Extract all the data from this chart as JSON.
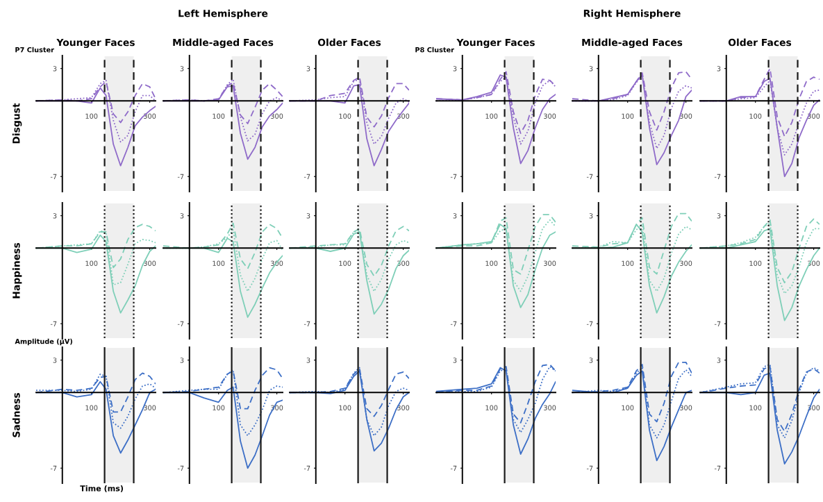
{
  "chart_data": [
    {
      "type": "line",
      "title": "Younger Faces",
      "ylabel": "Disgust",
      "annotations": [
        "P7 Cluster"
      ],
      "x": [
        -90,
        0,
        50,
        100,
        130,
        150,
        175,
        200,
        225,
        250,
        275,
        300,
        320
      ],
      "xlim": [
        -90,
        320
      ],
      "ylim": [
        -8.4,
        4.2
      ],
      "xticks": [
        100,
        300
      ],
      "yticks": [
        3,
        -7
      ],
      "bands": [
        {
          "axis": "x",
          "from": 145,
          "to": 245,
          "color": "#1a1a1a"
        }
      ],
      "ref_lines": [
        {
          "axis": "x",
          "value": 145,
          "color": "#1a1a1a",
          "line_style": "dashed"
        },
        {
          "axis": "x",
          "value": 245,
          "color": "#1a1a1a",
          "line_style": "dashed"
        }
      ],
      "series": [
        {
          "color": "#8f6bc9",
          "line_style": "solid",
          "values": [
            0,
            0,
            0,
            -0.2,
            1.2,
            0.5,
            -4.0,
            -6.0,
            -4.3,
            -2.3,
            -1.5,
            -0.9,
            -0.5
          ]
        },
        {
          "color": "#8f6bc9",
          "line_style": "dotted",
          "values": [
            0,
            0.1,
            0.2,
            0.3,
            1.6,
            1.9,
            -1.8,
            -3.8,
            -3.2,
            -1.0,
            0.5,
            0.5,
            0
          ]
        },
        {
          "color": "#8f6bc9",
          "line_style": "dashed",
          "values": [
            0,
            0.1,
            0,
            0.2,
            1.3,
            1.8,
            -1.2,
            -2.0,
            -1.0,
            0.5,
            1.6,
            1.3,
            0.2
          ]
        }
      ]
    },
    {
      "type": "line",
      "title": "Middle-aged Faces",
      "subtitle": "Left Hemisphere",
      "x": [
        -90,
        0,
        50,
        100,
        130,
        150,
        175,
        200,
        225,
        250,
        275,
        300,
        320
      ],
      "xlim": [
        -90,
        320
      ],
      "ylim": [
        -8.4,
        4.2
      ],
      "xticks": [
        100,
        300
      ],
      "yticks": [
        3,
        -7
      ],
      "bands": [
        {
          "axis": "x",
          "from": 145,
          "to": 245,
          "color": "#1a1a1a"
        }
      ],
      "ref_lines": [
        {
          "axis": "x",
          "value": 145,
          "color": "#1a1a1a",
          "line_style": "dashed"
        },
        {
          "axis": "x",
          "value": 245,
          "color": "#1a1a1a",
          "line_style": "dashed"
        }
      ],
      "series": [
        {
          "color": "#8f6bc9",
          "line_style": "solid",
          "values": [
            0,
            0,
            0,
            0.1,
            1.3,
            1.4,
            -3.0,
            -5.4,
            -4.3,
            -2.4,
            -1.4,
            -0.8,
            -0.2
          ]
        },
        {
          "color": "#8f6bc9",
          "line_style": "dotted",
          "values": [
            0,
            0.1,
            0,
            0.1,
            1.5,
            2.0,
            -1.5,
            -3.7,
            -3.1,
            -1.2,
            0,
            0.3,
            0
          ]
        },
        {
          "color": "#8f6bc9",
          "line_style": "dashed",
          "values": [
            0,
            0.1,
            0,
            0.2,
            1.4,
            1.7,
            -1.3,
            -2.1,
            -0.6,
            1.0,
            1.6,
            1.0,
            0.4
          ]
        }
      ]
    },
    {
      "type": "line",
      "title": "Older Faces",
      "x": [
        -90,
        0,
        50,
        100,
        130,
        150,
        175,
        200,
        225,
        250,
        275,
        300,
        320
      ],
      "xlim": [
        -90,
        320
      ],
      "ylim": [
        -8.4,
        4.2
      ],
      "xticks": [
        100,
        300
      ],
      "yticks": [
        3,
        -7
      ],
      "bands": [
        {
          "axis": "x",
          "from": 145,
          "to": 245,
          "color": "#1a1a1a"
        }
      ],
      "ref_lines": [
        {
          "axis": "x",
          "value": 145,
          "color": "#1a1a1a",
          "line_style": "dashed"
        },
        {
          "axis": "x",
          "value": 245,
          "color": "#1a1a1a",
          "line_style": "dashed"
        }
      ],
      "series": [
        {
          "color": "#8f6bc9",
          "line_style": "solid",
          "values": [
            0,
            0,
            0,
            -0.2,
            1.4,
            1.5,
            -3.5,
            -6.0,
            -4.5,
            -2.8,
            -1.8,
            -0.9,
            -0.2
          ]
        },
        {
          "color": "#8f6bc9",
          "line_style": "dotted",
          "values": [
            0,
            0.1,
            0.3,
            0.4,
            1.8,
            2.0,
            -2.0,
            -4.0,
            -3.3,
            -1.6,
            -0.2,
            0.2,
            -0.1
          ]
        },
        {
          "color": "#8f6bc9",
          "line_style": "dashed",
          "values": [
            0,
            0,
            0.5,
            0.7,
            1.9,
            2.2,
            -1.5,
            -2.4,
            -1.4,
            0.3,
            1.6,
            1.6,
            1.0
          ]
        }
      ]
    },
    {
      "type": "line",
      "title": "Younger Faces",
      "annotations": [
        "P8 Cluster"
      ],
      "x": [
        -90,
        0,
        50,
        100,
        130,
        150,
        175,
        200,
        225,
        250,
        275,
        300,
        320
      ],
      "xlim": [
        -90,
        320
      ],
      "ylim": [
        -8.4,
        4.2
      ],
      "xticks": [
        100,
        300
      ],
      "yticks": [
        3,
        -7
      ],
      "bands": [
        {
          "axis": "x",
          "from": 145,
          "to": 245,
          "color": "#1a1a1a"
        }
      ],
      "ref_lines": [
        {
          "axis": "x",
          "value": 145,
          "color": "#1a1a1a",
          "line_style": "dashed"
        },
        {
          "axis": "x",
          "value": 245,
          "color": "#1a1a1a",
          "line_style": "dashed"
        }
      ],
      "series": [
        {
          "color": "#8f6bc9",
          "line_style": "solid",
          "values": [
            0.2,
            0.1,
            0.4,
            0.8,
            2.4,
            2.2,
            -2.5,
            -5.8,
            -4.6,
            -2.5,
            -0.8,
            0.2,
            0.6
          ]
        },
        {
          "color": "#8f6bc9",
          "line_style": "dotted",
          "values": [
            0,
            0.1,
            0.3,
            0.6,
            1.8,
            2.2,
            -1.5,
            -4.0,
            -2.8,
            -0.2,
            1.4,
            1.9,
            1.3
          ]
        },
        {
          "color": "#8f6bc9",
          "line_style": "dashed",
          "values": [
            0.2,
            0.1,
            0.3,
            0.6,
            2.0,
            2.7,
            -1.0,
            -3.0,
            -1.8,
            0.5,
            2.0,
            1.9,
            1.4
          ]
        }
      ]
    },
    {
      "type": "line",
      "title": "Middle-aged Faces",
      "subtitle": "Right Hemisphere",
      "x": [
        -90,
        0,
        50,
        100,
        130,
        150,
        175,
        200,
        225,
        250,
        275,
        300,
        320
      ],
      "xlim": [
        -90,
        320
      ],
      "ylim": [
        -8.4,
        4.2
      ],
      "xticks": [
        100,
        300
      ],
      "yticks": [
        3,
        -7
      ],
      "bands": [
        {
          "axis": "x",
          "from": 145,
          "to": 245,
          "color": "#1a1a1a"
        }
      ],
      "ref_lines": [
        {
          "axis": "x",
          "value": 145,
          "color": "#1a1a1a",
          "line_style": "dashed"
        },
        {
          "axis": "x",
          "value": 245,
          "color": "#1a1a1a",
          "line_style": "dashed"
        }
      ],
      "series": [
        {
          "color": "#8f6bc9",
          "line_style": "solid",
          "values": [
            0,
            0,
            0.3,
            0.6,
            1.8,
            2.4,
            -2.5,
            -5.9,
            -4.8,
            -3.2,
            -1.8,
            0.4,
            1.0
          ]
        },
        {
          "color": "#8f6bc9",
          "line_style": "dotted",
          "values": [
            0,
            0,
            0.1,
            0.5,
            1.7,
            2.4,
            -2.0,
            -4.4,
            -3.2,
            -0.7,
            0.9,
            1.4,
            1.2
          ]
        },
        {
          "color": "#8f6bc9",
          "line_style": "dashed",
          "values": [
            0.2,
            0,
            0.2,
            0.6,
            1.8,
            2.6,
            -1.0,
            -2.7,
            -1.0,
            1.2,
            2.6,
            2.7,
            2.0
          ]
        }
      ]
    },
    {
      "type": "line",
      "title": "Older Faces",
      "x": [
        -90,
        0,
        50,
        100,
        130,
        150,
        175,
        200,
        225,
        250,
        275,
        300,
        320
      ],
      "xlim": [
        -90,
        320
      ],
      "ylim": [
        -8.4,
        4.2
      ],
      "xticks": [
        100,
        300
      ],
      "yticks": [
        3,
        -7
      ],
      "bands": [
        {
          "axis": "x",
          "from": 145,
          "to": 245,
          "color": "#1a1a1a"
        }
      ],
      "ref_lines": [
        {
          "axis": "x",
          "value": 145,
          "color": "#1a1a1a",
          "line_style": "dashed"
        },
        {
          "axis": "x",
          "value": 245,
          "color": "#1a1a1a",
          "line_style": "dashed"
        }
      ],
      "series": [
        {
          "color": "#8f6bc9",
          "line_style": "solid",
          "values": [
            0,
            0,
            0.4,
            0.4,
            1.8,
            2.1,
            -2.5,
            -7.0,
            -5.8,
            -3.4,
            -1.8,
            -0.4,
            0.1
          ]
        },
        {
          "color": "#8f6bc9",
          "line_style": "dotted",
          "values": [
            0,
            0,
            0.2,
            0.3,
            1.3,
            1.9,
            -2.5,
            -5.0,
            -4.0,
            -2.0,
            -0.2,
            0.9,
            1.0
          ]
        },
        {
          "color": "#8f6bc9",
          "line_style": "dashed",
          "values": [
            0,
            0,
            0.3,
            0.4,
            2.0,
            3.0,
            -1.5,
            -3.3,
            -2.0,
            0.2,
            1.8,
            2.2,
            2.0
          ]
        }
      ]
    },
    {
      "type": "line",
      "ylabel": "Happiness",
      "x": [
        -90,
        0,
        50,
        100,
        130,
        150,
        175,
        200,
        225,
        250,
        275,
        300,
        320
      ],
      "xlim": [
        -90,
        320
      ],
      "ylim": [
        -8.4,
        4.2
      ],
      "xticks": [
        100,
        300
      ],
      "yticks": [
        3,
        -7
      ],
      "bands": [
        {
          "axis": "x",
          "from": 145,
          "to": 245,
          "color": "#1a1a1a"
        }
      ],
      "ref_lines": [
        {
          "axis": "x",
          "value": 145,
          "color": "#1a1a1a",
          "line_style": "dotted"
        },
        {
          "axis": "x",
          "value": 245,
          "color": "#1a1a1a",
          "line_style": "dotted"
        }
      ],
      "series": [
        {
          "color": "#7fcfb8",
          "line_style": "solid",
          "values": [
            0,
            0,
            -0.4,
            -0.1,
            1.2,
            0.6,
            -4.0,
            -6.0,
            -4.8,
            -3.5,
            -1.6,
            -0.3,
            0.2
          ]
        },
        {
          "color": "#7fcfb8",
          "line_style": "dotted",
          "values": [
            0,
            0.2,
            0.3,
            0.4,
            1.6,
            1.5,
            -3.4,
            -3.2,
            -1.5,
            0.4,
            0.8,
            0.7,
            0.5
          ]
        },
        {
          "color": "#7fcfb8",
          "line_style": "dashed",
          "values": [
            0,
            0.2,
            0.2,
            0.4,
            1.5,
            1.5,
            -1.8,
            -1.0,
            0.8,
            1.9,
            2.2,
            2.0,
            1.6
          ]
        }
      ]
    },
    {
      "type": "line",
      "x": [
        -90,
        0,
        50,
        100,
        130,
        150,
        175,
        200,
        225,
        250,
        275,
        300,
        320
      ],
      "xlim": [
        -90,
        320
      ],
      "ylim": [
        -8.4,
        4.2
      ],
      "xticks": [
        100,
        300
      ],
      "yticks": [
        3,
        -7
      ],
      "bands": [
        {
          "axis": "x",
          "from": 145,
          "to": 245,
          "color": "#1a1a1a"
        }
      ],
      "ref_lines": [
        {
          "axis": "x",
          "value": 145,
          "color": "#1a1a1a",
          "line_style": "dotted"
        },
        {
          "axis": "x",
          "value": 245,
          "color": "#1a1a1a",
          "line_style": "dotted"
        }
      ],
      "series": [
        {
          "color": "#7fcfb8",
          "line_style": "solid",
          "values": [
            0,
            0,
            0,
            -0.4,
            0.9,
            0.6,
            -4.0,
            -6.4,
            -5.2,
            -3.7,
            -2.3,
            -1.3,
            -0.7
          ]
        },
        {
          "color": "#7fcfb8",
          "line_style": "dotted",
          "values": [
            0,
            0,
            0.1,
            0.4,
            1.0,
            1.7,
            -2.5,
            -4.0,
            -2.8,
            -1.0,
            0.5,
            0.7,
            -0.2
          ]
        },
        {
          "color": "#7fcfb8",
          "line_style": "dashed",
          "values": [
            0.2,
            0,
            0.1,
            0.3,
            1.3,
            2.3,
            -1.0,
            -1.9,
            -0.4,
            1.5,
            2.2,
            1.8,
            0.9
          ]
        }
      ]
    },
    {
      "type": "line",
      "x": [
        -90,
        0,
        50,
        100,
        130,
        150,
        175,
        200,
        225,
        250,
        275,
        300,
        320
      ],
      "xlim": [
        -90,
        320
      ],
      "ylim": [
        -8.4,
        4.2
      ],
      "xticks": [
        100,
        300
      ],
      "yticks": [
        3,
        -7
      ],
      "bands": [
        {
          "axis": "x",
          "from": 145,
          "to": 245,
          "color": "#1a1a1a"
        }
      ],
      "ref_lines": [
        {
          "axis": "x",
          "value": 145,
          "color": "#1a1a1a",
          "line_style": "dotted"
        },
        {
          "axis": "x",
          "value": 245,
          "color": "#1a1a1a",
          "line_style": "dotted"
        }
      ],
      "series": [
        {
          "color": "#7fcfb8",
          "line_style": "solid",
          "values": [
            0,
            0,
            -0.3,
            0,
            1.3,
            1.5,
            -3.0,
            -6.1,
            -5.2,
            -3.8,
            -1.9,
            -0.7,
            -0.2
          ]
        },
        {
          "color": "#7fcfb8",
          "line_style": "dotted",
          "values": [
            0,
            0.1,
            0.3,
            0.3,
            1.5,
            1.6,
            -2.5,
            -4.0,
            -2.9,
            -1.0,
            0.3,
            0.7,
            0.5
          ]
        },
        {
          "color": "#7fcfb8",
          "line_style": "dashed",
          "values": [
            0,
            0.2,
            0.3,
            0.4,
            1.5,
            1.8,
            -1.5,
            -2.6,
            -1.6,
            0.2,
            1.6,
            2.0,
            1.6
          ]
        }
      ]
    },
    {
      "type": "line",
      "x": [
        -90,
        0,
        50,
        100,
        130,
        150,
        175,
        200,
        225,
        250,
        275,
        300,
        320
      ],
      "xlim": [
        -90,
        320
      ],
      "ylim": [
        -8.4,
        4.2
      ],
      "xticks": [
        100,
        300
      ],
      "yticks": [
        3,
        -7
      ],
      "bands": [
        {
          "axis": "x",
          "from": 145,
          "to": 245,
          "color": "#1a1a1a"
        }
      ],
      "ref_lines": [
        {
          "axis": "x",
          "value": 145,
          "color": "#1a1a1a",
          "line_style": "dotted"
        },
        {
          "axis": "x",
          "value": 245,
          "color": "#1a1a1a",
          "line_style": "dotted"
        }
      ],
      "series": [
        {
          "color": "#7fcfb8",
          "line_style": "solid",
          "values": [
            0,
            0.3,
            0.4,
            0.6,
            2.2,
            1.8,
            -3.5,
            -5.5,
            -4.3,
            -2.0,
            0,
            1.2,
            1.5
          ]
        },
        {
          "color": "#7fcfb8",
          "line_style": "dotted",
          "values": [
            0,
            0.3,
            0.4,
            0.5,
            1.6,
            1.8,
            -3.0,
            -4.0,
            -2.6,
            -0.4,
            1.8,
            2.6,
            2.0
          ]
        },
        {
          "color": "#7fcfb8",
          "line_style": "dashed",
          "values": [
            0,
            0.2,
            0.2,
            0.5,
            2.5,
            2.8,
            -2.0,
            -2.4,
            -0.2,
            2.0,
            3.1,
            3.1,
            2.4
          ]
        }
      ]
    },
    {
      "type": "line",
      "x": [
        -90,
        0,
        50,
        100,
        130,
        150,
        175,
        200,
        225,
        250,
        275,
        300,
        320
      ],
      "xlim": [
        -90,
        320
      ],
      "ylim": [
        -8.4,
        4.2
      ],
      "xticks": [
        100,
        300
      ],
      "yticks": [
        3,
        -7
      ],
      "bands": [
        {
          "axis": "x",
          "from": 145,
          "to": 245,
          "color": "#1a1a1a"
        }
      ],
      "ref_lines": [
        {
          "axis": "x",
          "value": 145,
          "color": "#1a1a1a",
          "line_style": "dotted"
        },
        {
          "axis": "x",
          "value": 245,
          "color": "#1a1a1a",
          "line_style": "dotted"
        }
      ],
      "series": [
        {
          "color": "#7fcfb8",
          "line_style": "solid",
          "values": [
            0,
            0,
            0.1,
            0.5,
            2.2,
            1.5,
            -3.5,
            -6.0,
            -4.5,
            -2.6,
            -1.3,
            -0.3,
            0.3
          ]
        },
        {
          "color": "#7fcfb8",
          "line_style": "dotted",
          "values": [
            0,
            0.1,
            0.6,
            0.5,
            1.7,
            2.2,
            -3.0,
            -4.0,
            -2.8,
            -0.5,
            1.3,
            2.0,
            1.7
          ]
        },
        {
          "color": "#7fcfb8",
          "line_style": "dashed",
          "values": [
            0.2,
            0.1,
            0.4,
            0.5,
            2.2,
            2.8,
            -1.8,
            -2.4,
            -0.2,
            2.0,
            3.2,
            3.2,
            2.5
          ]
        }
      ]
    },
    {
      "type": "line",
      "x": [
        -90,
        0,
        50,
        100,
        130,
        150,
        175,
        200,
        225,
        250,
        275,
        300,
        320
      ],
      "xlim": [
        -90,
        320
      ],
      "ylim": [
        -8.4,
        4.2
      ],
      "xticks": [
        100,
        300
      ],
      "yticks": [
        3,
        -7
      ],
      "bands": [
        {
          "axis": "x",
          "from": 145,
          "to": 245,
          "color": "#1a1a1a"
        }
      ],
      "ref_lines": [
        {
          "axis": "x",
          "value": 145,
          "color": "#1a1a1a",
          "line_style": "dotted"
        },
        {
          "axis": "x",
          "value": 245,
          "color": "#1a1a1a",
          "line_style": "dotted"
        }
      ],
      "series": [
        {
          "color": "#7fcfb8",
          "line_style": "solid",
          "values": [
            0,
            0,
            0.3,
            0.6,
            1.6,
            1.8,
            -3.5,
            -6.7,
            -5.5,
            -3.5,
            -2.0,
            -0.7,
            0
          ]
        },
        {
          "color": "#7fcfb8",
          "line_style": "dotted",
          "values": [
            0,
            0.2,
            0.5,
            1.0,
            2.0,
            2.3,
            -2.5,
            -4.2,
            -3.5,
            -1.7,
            0.5,
            1.8,
            1.8
          ]
        },
        {
          "color": "#7fcfb8",
          "line_style": "dashed",
          "values": [
            0,
            0.2,
            0.4,
            0.8,
            2.0,
            2.6,
            -1.8,
            -3.2,
            -2.2,
            0,
            2.0,
            2.7,
            2.2
          ]
        }
      ]
    },
    {
      "type": "line",
      "ylabel": "Sadness",
      "xlabel": "Time (ms)",
      "annotations": [
        "Amplitude (µV)"
      ],
      "x": [
        -90,
        0,
        50,
        100,
        130,
        150,
        175,
        200,
        225,
        250,
        275,
        300,
        320
      ],
      "xlim": [
        -90,
        320
      ],
      "ylim": [
        -8.4,
        4.2
      ],
      "xticks": [
        100,
        300
      ],
      "yticks": [
        3,
        -7
      ],
      "bands": [
        {
          "axis": "x",
          "from": 145,
          "to": 245,
          "color": "#1a1a1a"
        }
      ],
      "ref_lines": [
        {
          "axis": "x",
          "value": 145,
          "color": "#1a1a1a",
          "line_style": "solid"
        },
        {
          "axis": "x",
          "value": 245,
          "color": "#1a1a1a",
          "line_style": "solid"
        }
      ],
      "series": [
        {
          "color": "#3d6fc6",
          "line_style": "solid",
          "values": [
            0,
            0,
            -0.4,
            -0.2,
            1.0,
            0.3,
            -4.0,
            -5.6,
            -4.4,
            -3.0,
            -1.6,
            0,
            0.3
          ]
        },
        {
          "color": "#3d6fc6",
          "line_style": "dotted",
          "values": [
            0.2,
            0.2,
            0.1,
            0.3,
            1.7,
            1.5,
            -2.8,
            -3.3,
            -2.2,
            -0.6,
            0.6,
            0.8,
            0.4
          ]
        },
        {
          "color": "#3d6fc6",
          "line_style": "dashed",
          "values": [
            0,
            0.3,
            0.2,
            0.4,
            1.4,
            1.5,
            -1.8,
            -1.8,
            -0.4,
            1.2,
            1.8,
            1.5,
            0.8
          ]
        }
      ]
    },
    {
      "type": "line",
      "x": [
        -90,
        0,
        50,
        100,
        130,
        150,
        175,
        200,
        225,
        250,
        275,
        300,
        320
      ],
      "xlim": [
        -90,
        320
      ],
      "ylim": [
        -8.4,
        4.2
      ],
      "xticks": [
        100,
        300
      ],
      "yticks": [
        3,
        -7
      ],
      "bands": [
        {
          "axis": "x",
          "from": 145,
          "to": 245,
          "color": "#1a1a1a"
        }
      ],
      "ref_lines": [
        {
          "axis": "x",
          "value": 145,
          "color": "#1a1a1a",
          "line_style": "solid"
        },
        {
          "axis": "x",
          "value": 245,
          "color": "#1a1a1a",
          "line_style": "solid"
        }
      ],
      "series": [
        {
          "color": "#3d6fc6",
          "line_style": "solid",
          "values": [
            0,
            0,
            -0.5,
            -0.9,
            0.2,
            0.5,
            -4.5,
            -7.0,
            -5.8,
            -4.0,
            -2.1,
            -0.9,
            -0.7
          ]
        },
        {
          "color": "#3d6fc6",
          "line_style": "dotted",
          "values": [
            0,
            0.2,
            0.3,
            0.3,
            1.7,
            2.1,
            -3.0,
            -4.0,
            -3.0,
            -1.6,
            0.2,
            0.6,
            0.5
          ]
        },
        {
          "color": "#3d6fc6",
          "line_style": "dashed",
          "values": [
            0,
            0.1,
            0.3,
            0.5,
            1.7,
            2.0,
            -1.5,
            -1.5,
            0.2,
            1.6,
            2.3,
            2.1,
            1.3
          ]
        }
      ]
    },
    {
      "type": "line",
      "x": [
        -90,
        0,
        50,
        100,
        130,
        150,
        175,
        200,
        225,
        250,
        275,
        300,
        320
      ],
      "xlim": [
        -90,
        320
      ],
      "ylim": [
        -8.4,
        4.2
      ],
      "xticks": [
        100,
        300
      ],
      "yticks": [
        3,
        -7
      ],
      "bands": [
        {
          "axis": "x",
          "from": 145,
          "to": 245,
          "color": "#1a1a1a"
        }
      ],
      "ref_lines": [
        {
          "axis": "x",
          "value": 145,
          "color": "#1a1a1a",
          "line_style": "solid"
        },
        {
          "axis": "x",
          "value": 245,
          "color": "#1a1a1a",
          "line_style": "solid"
        }
      ],
      "series": [
        {
          "color": "#3d6fc6",
          "line_style": "solid",
          "values": [
            0,
            0,
            -0.1,
            0.2,
            1.5,
            2.0,
            -2.5,
            -5.4,
            -4.7,
            -3.3,
            -1.6,
            -0.4,
            0
          ]
        },
        {
          "color": "#3d6fc6",
          "line_style": "dotted",
          "values": [
            0,
            0.1,
            0,
            0.3,
            1.8,
            2.3,
            -2.5,
            -4.0,
            -3.2,
            -1.2,
            0.1,
            0.4,
            0.2
          ]
        },
        {
          "color": "#3d6fc6",
          "line_style": "dashed",
          "values": [
            0,
            0,
            0.1,
            0.4,
            1.7,
            2.2,
            -1.5,
            -2.2,
            -1.2,
            0.3,
            1.7,
            1.9,
            1.3
          ]
        }
      ]
    },
    {
      "type": "line",
      "x": [
        -90,
        0,
        50,
        100,
        130,
        150,
        175,
        200,
        225,
        250,
        275,
        300,
        320
      ],
      "xlim": [
        -90,
        320
      ],
      "ylim": [
        -8.4,
        4.2
      ],
      "xticks": [
        100,
        300
      ],
      "yticks": [
        3,
        -7
      ],
      "bands": [
        {
          "axis": "x",
          "from": 145,
          "to": 245,
          "color": "#1a1a1a"
        }
      ],
      "ref_lines": [
        {
          "axis": "x",
          "value": 145,
          "color": "#1a1a1a",
          "line_style": "solid"
        },
        {
          "axis": "x",
          "value": 245,
          "color": "#1a1a1a",
          "line_style": "solid"
        }
      ],
      "series": [
        {
          "color": "#3d6fc6",
          "line_style": "solid",
          "values": [
            0.1,
            0.3,
            0.4,
            0.8,
            2.3,
            2.0,
            -3.0,
            -5.7,
            -4.3,
            -2.4,
            -1.1,
            -0.1,
            1.0
          ]
        },
        {
          "color": "#3d6fc6",
          "line_style": "dotted",
          "values": [
            0,
            0.1,
            0.1,
            0.5,
            2.0,
            2.2,
            -2.5,
            -3.7,
            -2.5,
            -1.0,
            1.2,
            2.4,
            2.0
          ]
        },
        {
          "color": "#3d6fc6",
          "line_style": "dashed",
          "values": [
            0,
            0.2,
            0.2,
            0.6,
            2.2,
            2.4,
            -2.0,
            -2.8,
            -1.0,
            1.0,
            2.5,
            2.6,
            2.0
          ]
        }
      ]
    },
    {
      "type": "line",
      "x": [
        -90,
        0,
        50,
        100,
        130,
        150,
        175,
        200,
        225,
        250,
        275,
        300,
        320
      ],
      "xlim": [
        -90,
        320
      ],
      "ylim": [
        -8.4,
        4.2
      ],
      "xticks": [
        100,
        300
      ],
      "yticks": [
        3,
        -7
      ],
      "bands": [
        {
          "axis": "x",
          "from": 145,
          "to": 245,
          "color": "#1a1a1a"
        }
      ],
      "ref_lines": [
        {
          "axis": "x",
          "value": 145,
          "color": "#1a1a1a",
          "line_style": "solid"
        },
        {
          "axis": "x",
          "value": 245,
          "color": "#1a1a1a",
          "line_style": "solid"
        }
      ],
      "series": [
        {
          "color": "#3d6fc6",
          "line_style": "solid",
          "values": [
            0.2,
            0,
            0,
            0.4,
            1.6,
            2.0,
            -3.5,
            -6.3,
            -5.0,
            -3.2,
            -1.6,
            0,
            0.2
          ]
        },
        {
          "color": "#3d6fc6",
          "line_style": "dotted",
          "values": [
            0,
            0.2,
            0.1,
            0.4,
            1.8,
            2.3,
            -3.0,
            -4.2,
            -3.0,
            -0.8,
            1.3,
            2.1,
            1.5
          ]
        },
        {
          "color": "#3d6fc6",
          "line_style": "dashed",
          "values": [
            0,
            0.1,
            0.2,
            0.5,
            2.0,
            2.6,
            -2.0,
            -2.7,
            -1.0,
            1.5,
            2.8,
            2.8,
            1.8
          ]
        }
      ]
    },
    {
      "type": "line",
      "x": [
        -90,
        0,
        50,
        100,
        130,
        150,
        175,
        200,
        225,
        250,
        275,
        300,
        320
      ],
      "xlim": [
        -90,
        320
      ],
      "ylim": [
        -8.4,
        4.2
      ],
      "xticks": [
        100,
        300
      ],
      "yticks": [
        3,
        -7
      ],
      "bands": [
        {
          "axis": "x",
          "from": 145,
          "to": 245,
          "color": "#1a1a1a"
        }
      ],
      "ref_lines": [
        {
          "axis": "x",
          "value": 145,
          "color": "#1a1a1a",
          "line_style": "solid"
        },
        {
          "axis": "x",
          "value": 245,
          "color": "#1a1a1a",
          "line_style": "solid"
        }
      ],
      "series": [
        {
          "color": "#3d6fc6",
          "line_style": "solid",
          "values": [
            0,
            0,
            -0.2,
            0,
            1.6,
            1.8,
            -3.5,
            -6.6,
            -5.5,
            -4.0,
            -2.2,
            -0.5,
            0.3
          ]
        },
        {
          "color": "#3d6fc6",
          "line_style": "dotted",
          "values": [
            0,
            0.5,
            0.8,
            0.9,
            2.4,
            2.6,
            -3.0,
            -4.2,
            -2.6,
            0,
            1.8,
            2.3,
            2.0
          ]
        },
        {
          "color": "#3d6fc6",
          "line_style": "dashed",
          "values": [
            0,
            0.4,
            0.6,
            0.7,
            2.2,
            2.4,
            -2.5,
            -3.6,
            -2.0,
            0.3,
            1.9,
            2.2,
            1.8
          ]
        }
      ]
    }
  ]
}
